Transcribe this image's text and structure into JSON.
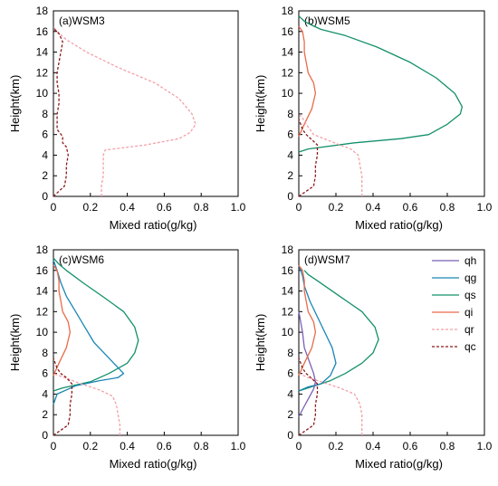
{
  "chart_data": {
    "type": "line",
    "xlabel": "Mixed ratio(g/kg)",
    "ylabel": "Height(km)",
    "xlim": [
      0,
      1.0
    ],
    "ylim": [
      0,
      18
    ],
    "x_ticks": [
      0,
      0.2,
      0.4,
      0.6,
      0.8,
      1.0
    ],
    "x_tick_labels": [
      "0",
      "0.2",
      "0.4",
      "0.6",
      "0.8",
      "1.0"
    ],
    "y_ticks": [
      0,
      2,
      4,
      6,
      8,
      10,
      12,
      14,
      16,
      18
    ],
    "y_tick_labels": [
      "0",
      "2",
      "4",
      "6",
      "8",
      "10",
      "12",
      "14",
      "16",
      "18"
    ],
    "grid": false,
    "legend_position": "top-right",
    "series_styles": {
      "qh": {
        "color": "#7b5fb5",
        "dash": "solid"
      },
      "qg": {
        "color": "#1a86b4",
        "dash": "solid"
      },
      "qs": {
        "color": "#13906b",
        "dash": "solid"
      },
      "qi": {
        "color": "#ea6a4a",
        "dash": "solid"
      },
      "qr": {
        "color": "#f2a0a8",
        "dash": "dashed"
      },
      "qc": {
        "color": "#8b1a1a",
        "dash": "dashed"
      }
    },
    "legend": [
      "qh",
      "qg",
      "qs",
      "qi",
      "qr",
      "qc"
    ],
    "panels": [
      {
        "label": "(a)WSM3",
        "series": [
          {
            "name": "qr",
            "points": [
              [
                0.26,
                0
              ],
              [
                0.26,
                1
              ],
              [
                0.27,
                2
              ],
              [
                0.27,
                3
              ],
              [
                0.27,
                4
              ],
              [
                0.28,
                4.5
              ],
              [
                0.5,
                5
              ],
              [
                0.68,
                5.6
              ],
              [
                0.74,
                6.2
              ],
              [
                0.77,
                7
              ],
              [
                0.75,
                8
              ],
              [
                0.68,
                9.5
              ],
              [
                0.55,
                11
              ],
              [
                0.35,
                12.5
              ],
              [
                0.18,
                14
              ],
              [
                0.07,
                15.2
              ],
              [
                0.02,
                16
              ],
              [
                0,
                16.5
              ]
            ]
          },
          {
            "name": "qc",
            "points": [
              [
                0,
                0
              ],
              [
                0.03,
                0.5
              ],
              [
                0.06,
                1
              ],
              [
                0.07,
                2
              ],
              [
                0.07,
                3
              ],
              [
                0.08,
                4
              ],
              [
                0.07,
                4.8
              ],
              [
                0.05,
                5.2
              ],
              [
                0.05,
                5.8
              ],
              [
                0.02,
                6.5
              ],
              [
                0.02,
                8
              ],
              [
                0.03,
                9
              ],
              [
                0.03,
                10
              ],
              [
                0.02,
                11
              ],
              [
                0.02,
                12
              ],
              [
                0.03,
                13
              ],
              [
                0.04,
                14
              ],
              [
                0.05,
                15
              ],
              [
                0.03,
                15.8
              ],
              [
                0,
                16.3
              ]
            ]
          }
        ]
      },
      {
        "label": "(b)WSM5",
        "series": [
          {
            "name": "qs",
            "points": [
              [
                0,
                4.3
              ],
              [
                0.05,
                4.6
              ],
              [
                0.3,
                5.2
              ],
              [
                0.55,
                5.6
              ],
              [
                0.7,
                6
              ],
              [
                0.8,
                7
              ],
              [
                0.87,
                8
              ],
              [
                0.88,
                8.7
              ],
              [
                0.84,
                10
              ],
              [
                0.74,
                11.5
              ],
              [
                0.6,
                13
              ],
              [
                0.42,
                14.5
              ],
              [
                0.25,
                15.6
              ],
              [
                0.12,
                16.2
              ],
              [
                0.07,
                16.6
              ],
              [
                0.03,
                17
              ],
              [
                0,
                17.5
              ]
            ]
          },
          {
            "name": "qi",
            "points": [
              [
                0,
                5.8
              ],
              [
                0.03,
                7
              ],
              [
                0.07,
                8.5
              ],
              [
                0.09,
                10
              ],
              [
                0.08,
                11
              ],
              [
                0.05,
                12
              ],
              [
                0.04,
                13
              ],
              [
                0.03,
                14
              ],
              [
                0.03,
                15
              ],
              [
                0.02,
                16
              ],
              [
                0,
                16.5
              ]
            ]
          },
          {
            "name": "qr",
            "points": [
              [
                0.34,
                0
              ],
              [
                0.34,
                1
              ],
              [
                0.34,
                2
              ],
              [
                0.33,
                3
              ],
              [
                0.32,
                4
              ],
              [
                0.28,
                4.6
              ],
              [
                0.22,
                5
              ],
              [
                0.15,
                5.5
              ],
              [
                0.08,
                6
              ],
              [
                0.04,
                7
              ],
              [
                0.02,
                7.6
              ],
              [
                0,
                8
              ]
            ]
          },
          {
            "name": "qc",
            "points": [
              [
                0,
                0
              ],
              [
                0.04,
                0.5
              ],
              [
                0.08,
                1
              ],
              [
                0.09,
                2
              ],
              [
                0.09,
                3
              ],
              [
                0.1,
                4
              ],
              [
                0.1,
                5
              ],
              [
                0.07,
                5.5
              ],
              [
                0.04,
                6
              ],
              [
                0.02,
                6.5
              ],
              [
                0.01,
                7
              ],
              [
                0,
                7.5
              ]
            ]
          }
        ]
      },
      {
        "label": "(c)WSM6",
        "series": [
          {
            "name": "qs",
            "points": [
              [
                0,
                4.3
              ],
              [
                0.05,
                4.6
              ],
              [
                0.2,
                5.2
              ],
              [
                0.3,
                6
              ],
              [
                0.4,
                7
              ],
              [
                0.44,
                8
              ],
              [
                0.46,
                9.2
              ],
              [
                0.44,
                10.5
              ],
              [
                0.38,
                12
              ],
              [
                0.28,
                13.3
              ],
              [
                0.16,
                14.8
              ],
              [
                0.07,
                16
              ],
              [
                0.03,
                16.6
              ],
              [
                0,
                17.2
              ]
            ]
          },
          {
            "name": "qg",
            "points": [
              [
                0,
                3
              ],
              [
                0.02,
                4
              ],
              [
                0.12,
                4.8
              ],
              [
                0.25,
                5.3
              ],
              [
                0.35,
                5.6
              ],
              [
                0.38,
                6
              ],
              [
                0.3,
                7.5
              ],
              [
                0.22,
                9
              ],
              [
                0.17,
                10.5
              ],
              [
                0.12,
                12
              ],
              [
                0.07,
                13.5
              ],
              [
                0.04,
                14.8
              ],
              [
                0.02,
                16
              ],
              [
                0,
                17
              ]
            ]
          },
          {
            "name": "qi",
            "points": [
              [
                0,
                5.8
              ],
              [
                0.03,
                7
              ],
              [
                0.07,
                8.5
              ],
              [
                0.09,
                10
              ],
              [
                0.08,
                11
              ],
              [
                0.05,
                12
              ],
              [
                0.04,
                13
              ],
              [
                0.03,
                14
              ],
              [
                0.03,
                15
              ],
              [
                0.02,
                16
              ],
              [
                0,
                16.5
              ]
            ]
          },
          {
            "name": "qr",
            "points": [
              [
                0.36,
                0
              ],
              [
                0.36,
                1
              ],
              [
                0.35,
                2
              ],
              [
                0.34,
                3
              ],
              [
                0.32,
                3.8
              ],
              [
                0.25,
                4.4
              ],
              [
                0.15,
                5
              ],
              [
                0.06,
                5.6
              ],
              [
                0,
                6
              ]
            ]
          },
          {
            "name": "qc",
            "points": [
              [
                0,
                0
              ],
              [
                0.04,
                0.5
              ],
              [
                0.08,
                1
              ],
              [
                0.09,
                2
              ],
              [
                0.09,
                3
              ],
              [
                0.1,
                4
              ],
              [
                0.1,
                5
              ],
              [
                0.07,
                5.6
              ],
              [
                0.04,
                6
              ],
              [
                0.02,
                6.5
              ],
              [
                0.01,
                7
              ],
              [
                0,
                7.5
              ]
            ]
          }
        ]
      },
      {
        "label": "(d)WSM7",
        "series": [
          {
            "name": "qs",
            "points": [
              [
                0,
                4.3
              ],
              [
                0.05,
                4.6
              ],
              [
                0.17,
                5.3
              ],
              [
                0.25,
                6
              ],
              [
                0.34,
                7
              ],
              [
                0.4,
                8
              ],
              [
                0.43,
                9.3
              ],
              [
                0.41,
                10.5
              ],
              [
                0.34,
                12
              ],
              [
                0.22,
                13.5
              ],
              [
                0.1,
                15
              ],
              [
                0.05,
                15.6
              ],
              [
                0.03,
                16
              ]
            ]
          },
          {
            "name": "qg",
            "points": [
              [
                0,
                4.3
              ],
              [
                0.05,
                4.7
              ],
              [
                0.12,
                5
              ],
              [
                0.17,
                5.8
              ],
              [
                0.2,
                7
              ],
              [
                0.18,
                8.5
              ],
              [
                0.14,
                10
              ],
              [
                0.1,
                11.5
              ],
              [
                0.06,
                13
              ],
              [
                0.03,
                14.5
              ],
              [
                0.02,
                15.5
              ],
              [
                0,
                16.5
              ]
            ]
          },
          {
            "name": "qh",
            "points": [
              [
                0,
                1.8
              ],
              [
                0.02,
                2.5
              ],
              [
                0.05,
                3.5
              ],
              [
                0.08,
                4.5
              ],
              [
                0.09,
                5.2
              ],
              [
                0.08,
                6
              ],
              [
                0.06,
                7
              ],
              [
                0.03,
                8.5
              ],
              [
                0.02,
                10
              ],
              [
                0.01,
                11
              ],
              [
                0,
                12
              ]
            ]
          },
          {
            "name": "qi",
            "points": [
              [
                0,
                5.8
              ],
              [
                0.03,
                7
              ],
              [
                0.07,
                8.5
              ],
              [
                0.09,
                10
              ],
              [
                0.08,
                11
              ],
              [
                0.05,
                12
              ],
              [
                0.04,
                13
              ],
              [
                0.03,
                14
              ],
              [
                0.03,
                15
              ],
              [
                0.02,
                16
              ],
              [
                0,
                16.5
              ]
            ]
          },
          {
            "name": "qr",
            "points": [
              [
                0.34,
                0
              ],
              [
                0.34,
                1
              ],
              [
                0.34,
                2
              ],
              [
                0.33,
                3
              ],
              [
                0.3,
                4
              ],
              [
                0.22,
                4.6
              ],
              [
                0.12,
                5.2
              ],
              [
                0.05,
                5.6
              ],
              [
                0,
                6
              ]
            ]
          },
          {
            "name": "qc",
            "points": [
              [
                0,
                0
              ],
              [
                0.04,
                0.5
              ],
              [
                0.08,
                1
              ],
              [
                0.09,
                2
              ],
              [
                0.09,
                3
              ],
              [
                0.1,
                4
              ],
              [
                0.1,
                5
              ],
              [
                0.07,
                5.5
              ],
              [
                0.04,
                6
              ],
              [
                0.02,
                6.5
              ],
              [
                0.01,
                7
              ],
              [
                0,
                7.5
              ]
            ]
          }
        ]
      }
    ]
  }
}
